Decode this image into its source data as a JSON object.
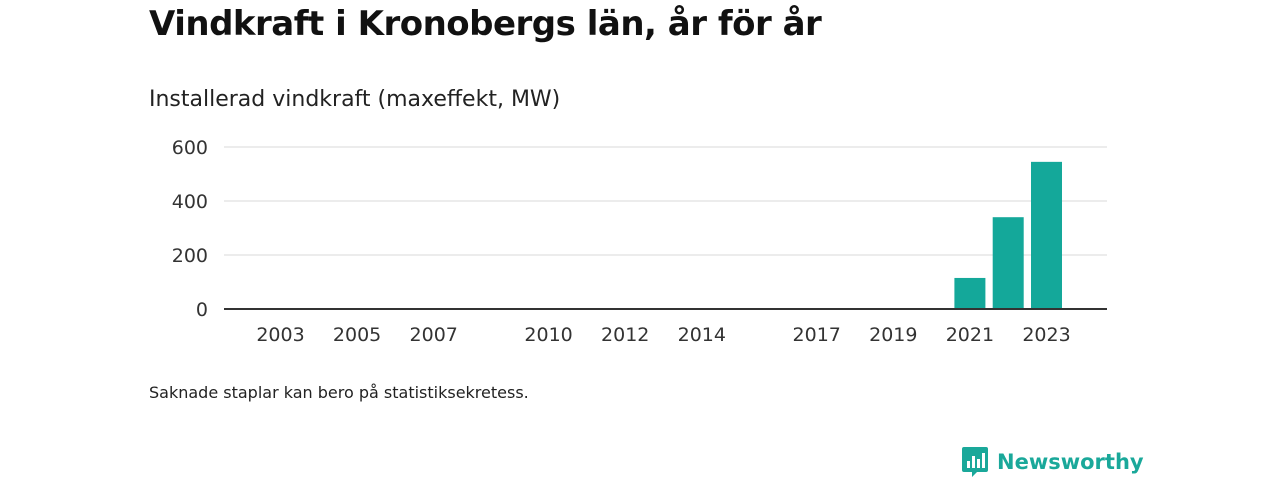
{
  "title": "Vindkraft i Kronobergs län, år för år",
  "subtitle": "Installerad vindkraft (maxeffekt, MW)",
  "footnote": "Saknade staplar kan bero på statistiksekretess.",
  "logo": {
    "text": "Newsworthy",
    "icon": "newsworthy-logo-icon"
  },
  "colors": {
    "bar": "#14a89a",
    "grid": "#d9d9d9",
    "axis": "#333333",
    "brand": "#1aa89a"
  },
  "chart_data": {
    "type": "bar",
    "title": "Installerad vindkraft (maxeffekt, MW)",
    "xlabel": "",
    "ylabel": "",
    "x_range": [
      2001,
      2024
    ],
    "ylim": [
      0,
      600
    ],
    "yticks": [
      0,
      200,
      400,
      600
    ],
    "xticks": [
      2003,
      2005,
      2007,
      2010,
      2012,
      2014,
      2017,
      2019,
      2021,
      2023
    ],
    "categories": [
      2021,
      2022,
      2023
    ],
    "values": [
      115,
      340,
      545
    ],
    "grid": true,
    "legend": "none"
  }
}
